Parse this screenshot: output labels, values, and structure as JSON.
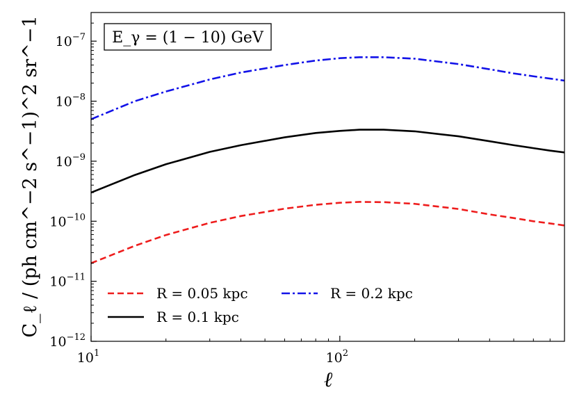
{
  "chart_data": {
    "type": "line",
    "title": "",
    "annotation": "E_γ = (1 − 10) GeV",
    "xlabel": "ℓ",
    "ylabel": "C_ℓ / (ph cm^−2 s^−1)^2 sr^−1",
    "xscale": "log",
    "yscale": "log",
    "xlim": [
      10,
      800
    ],
    "ylim": [
      1e-12,
      3e-07
    ],
    "xticks": [
      {
        "value": 10,
        "base": "10",
        "exp": "1"
      },
      {
        "value": 100,
        "base": "10",
        "exp": "2"
      }
    ],
    "yticks": [
      {
        "value": 1e-12,
        "base": "10",
        "exp": "−12"
      },
      {
        "value": 1e-11,
        "base": "10",
        "exp": "−11"
      },
      {
        "value": 1e-10,
        "base": "10",
        "exp": "−10"
      },
      {
        "value": 1e-09,
        "base": "10",
        "exp": "−9"
      },
      {
        "value": 1e-08,
        "base": "10",
        "exp": "−8"
      },
      {
        "value": 1e-07,
        "base": "10",
        "exp": "−7"
      }
    ],
    "legend_position": "lower-left",
    "series": [
      {
        "name": "R = 0.05 kpc",
        "color": "#ee1c1c",
        "style": "dashed",
        "x": [
          10,
          15,
          20,
          30,
          40,
          60,
          80,
          100,
          120,
          150,
          200,
          300,
          400,
          500,
          600,
          700,
          800
        ],
        "y": [
          2e-11,
          3.9e-11,
          5.9e-11,
          9.4e-11,
          1.22e-10,
          1.62e-10,
          1.88e-10,
          2.03e-10,
          2.1e-10,
          2.08e-10,
          1.95e-10,
          1.6e-10,
          1.3e-10,
          1.13e-10,
          1e-10,
          9.2e-11,
          8.5e-11
        ]
      },
      {
        "name": "R = 0.1 kpc",
        "color": "#000000",
        "style": "solid",
        "x": [
          10,
          15,
          20,
          30,
          40,
          60,
          80,
          100,
          120,
          150,
          200,
          300,
          400,
          500,
          600,
          700,
          800
        ],
        "y": [
          3e-10,
          5.9e-10,
          8.9e-10,
          1.43e-09,
          1.85e-09,
          2.5e-09,
          2.95e-09,
          3.2e-09,
          3.35e-09,
          3.35e-09,
          3.15e-09,
          2.6e-09,
          2.15e-09,
          1.85e-09,
          1.65e-09,
          1.5e-09,
          1.4e-09
        ]
      },
      {
        "name": "R = 0.2 kpc",
        "color": "#1212e8",
        "style": "dashdot",
        "x": [
          10,
          15,
          20,
          30,
          40,
          60,
          80,
          100,
          120,
          150,
          200,
          300,
          400,
          500,
          600,
          700,
          800
        ],
        "y": [
          5e-09,
          1e-08,
          1.45e-08,
          2.3e-08,
          3e-08,
          4e-08,
          4.75e-08,
          5.2e-08,
          5.4e-08,
          5.4e-08,
          5.1e-08,
          4.15e-08,
          3.4e-08,
          2.9e-08,
          2.6e-08,
          2.38e-08,
          2.2e-08
        ]
      }
    ]
  }
}
